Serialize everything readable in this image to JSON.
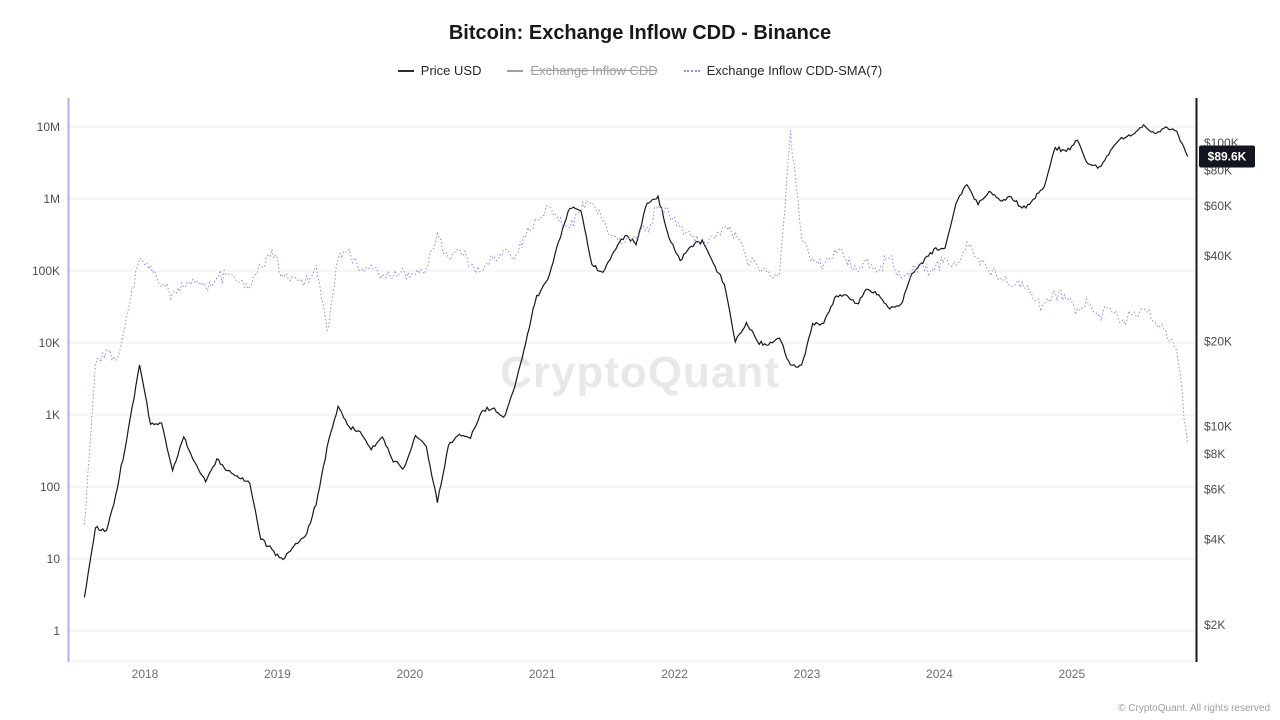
{
  "title": "Bitcoin: Exchange Inflow CDD - Binance",
  "legend": {
    "items": [
      {
        "label": "Price USD",
        "color": "#2b2b2b",
        "style": "solid",
        "disabled": false
      },
      {
        "label": "Exchange Inflow CDD",
        "color": "#9aa0a6",
        "style": "solid",
        "disabled": true
      },
      {
        "label": "Exchange Inflow CDD-SMA(7)",
        "color": "#8f8fdd",
        "style": "dotted",
        "disabled": false
      }
    ]
  },
  "watermark": "CryptoQuant",
  "footer": "© CryptoQuant. All rights reserved",
  "chart_data": {
    "type": "line",
    "title": "Bitcoin: Exchange Inflow CDD - Binance",
    "x_start": 2017.542,
    "x_step": 0.0833333,
    "x_ticks": [
      2018,
      2019,
      2020,
      2021,
      2022,
      2023,
      2024,
      2025
    ],
    "left_axis": {
      "scale": "log",
      "color": "#b4aee8",
      "tick_values": [
        10000000,
        1000000,
        100000,
        10000,
        1000,
        100,
        10,
        1
      ],
      "tick_labels": [
        "10M",
        "1M",
        "100K",
        "10K",
        "1K",
        "100",
        "10",
        "1"
      ]
    },
    "right_axis": {
      "scale": "log",
      "color": "#17191c",
      "tick_values": [
        100000,
        80000,
        60000,
        40000,
        20000,
        10000,
        8000,
        6000,
        4000,
        2000
      ],
      "tick_labels": [
        "$100K",
        "$80K",
        "$60K",
        "$40K",
        "$20K",
        "$10K",
        "$8K",
        "$6K",
        "$4K",
        "$2K"
      ]
    },
    "last_price": {
      "value": 89600,
      "label": "$89.6K"
    },
    "series": [
      {
        "name": "Price USD",
        "axis": "right",
        "color": "#17191c",
        "dash": "solid",
        "hidden": false,
        "values": [
          2500,
          4400,
          4300,
          6100,
          9900,
          16500,
          10200,
          10300,
          7000,
          9200,
          7500,
          6400,
          7700,
          7000,
          6600,
          6300,
          4000,
          3700,
          3400,
          3800,
          4100,
          5300,
          8500,
          11800,
          10000,
          9600,
          8300,
          9200,
          7500,
          7200,
          9300,
          8500,
          5400,
          8600,
          9400,
          9100,
          11300,
          11600,
          10800,
          13800,
          19700,
          29000,
          33100,
          45100,
          58800,
          57700,
          37300,
          35000,
          41500,
          47100,
          43800,
          61300,
          65000,
          46200,
          38500,
          43200,
          45500,
          37700,
          31800,
          19900,
          23300,
          20000,
          19400,
          20500,
          16500,
          16500,
          23100,
          23100,
          28500,
          29200,
          27200,
          30500,
          29200,
          26000,
          27000,
          34700,
          37700,
          42300,
          42600,
          61200,
          71300,
          60600,
          67500,
          62700,
          64600,
          59000,
          63300,
          70200,
          96400,
          93400,
          102400,
          84300,
          82500,
          94200,
          104600,
          107100,
          115800,
          108200,
          114000,
          110100,
          89600
        ]
      },
      {
        "name": "Exchange Inflow CDD",
        "axis": "left",
        "color": "#9aa0a6",
        "dash": "solid",
        "hidden": true,
        "values": []
      },
      {
        "name": "Exchange Inflow CDD-SMA(7)",
        "axis": "left",
        "color": "#8f8fdd",
        "dash": "dotted",
        "hidden": false,
        "values": [
          30,
          5000,
          8000,
          6000,
          30000,
          150000,
          120000,
          60000,
          50000,
          60000,
          70000,
          60000,
          80000,
          90000,
          70000,
          60000,
          120000,
          200000,
          90000,
          80000,
          70000,
          120000,
          15000,
          150000,
          200000,
          100000,
          120000,
          90000,
          80000,
          100000,
          90000,
          110000,
          350000,
          150000,
          200000,
          120000,
          100000,
          150000,
          200000,
          150000,
          300000,
          500000,
          800000,
          500000,
          400000,
          700000,
          900000,
          500000,
          300000,
          250000,
          300000,
          400000,
          800000,
          600000,
          400000,
          300000,
          250000,
          300000,
          400000,
          350000,
          150000,
          120000,
          100000,
          90000,
          9000000,
          300000,
          150000,
          120000,
          200000,
          150000,
          100000,
          150000,
          100000,
          150000,
          80000,
          100000,
          120000,
          100000,
          150000,
          120000,
          250000,
          150000,
          100000,
          80000,
          60000,
          70000,
          40000,
          35000,
          50000,
          40000,
          30000,
          35000,
          25000,
          30000,
          20000,
          25000,
          30000,
          20000,
          15000,
          8000,
          400
        ]
      }
    ]
  }
}
